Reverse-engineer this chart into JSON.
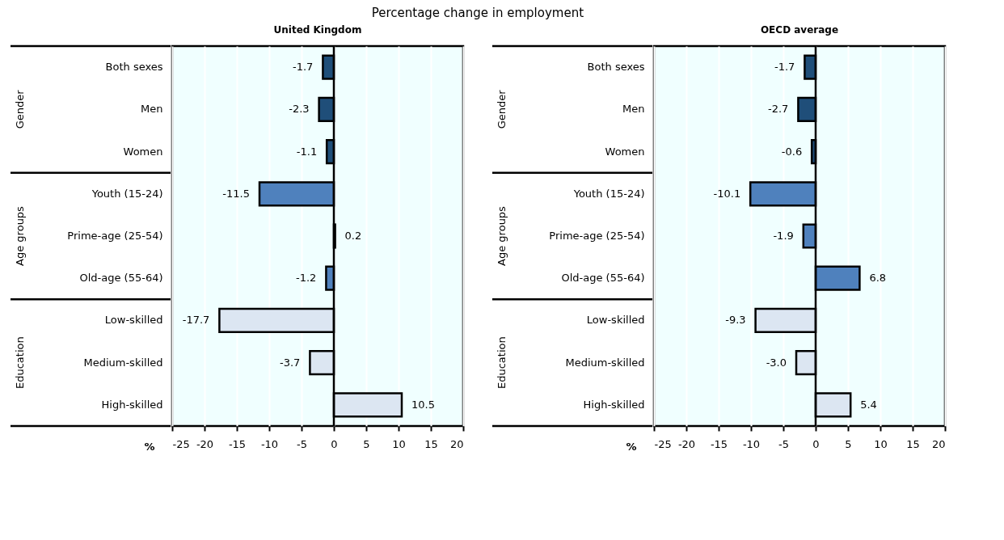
{
  "chart_data": [
    {
      "type": "bar",
      "orientation": "horizontal",
      "title": "United Kingdom",
      "subtitle": "Percentage change in employment",
      "xlabel": "%",
      "categories": [
        "Both sexes",
        "Men",
        "Women",
        "Youth (15-24)",
        "Prime-age (25-54)",
        "Old-age (55-64)",
        "Low-skilled",
        "Medium-skilled",
        "High-skilled"
      ],
      "values": [
        -1.7,
        -2.3,
        -1.1,
        -11.5,
        0.2,
        -1.2,
        -17.7,
        -3.7,
        10.5
      ],
      "colors": [
        "#1f4e79",
        "#1f4e79",
        "#1f4e79",
        "#4f81bd",
        "#4f81bd",
        "#4f81bd",
        "#dce6f2",
        "#dce6f2",
        "#dce6f2"
      ],
      "annotations": [
        "Gender",
        "Age groups",
        "Education"
      ],
      "value_labels": [
        "-1.7",
        "-2.3",
        "-1.1",
        "-11.5",
        "0.2",
        "-1.2",
        "-17.7",
        "-3.7",
        "10.5"
      ],
      "xlim": [
        -25,
        20
      ],
      "xticks": [
        -25,
        -20,
        -15,
        -10,
        -5,
        0,
        5,
        10,
        15,
        20
      ],
      "grid": "x",
      "legend": false
    },
    {
      "type": "bar",
      "orientation": "horizontal",
      "title": "OECD average",
      "xlabel": "%",
      "categories": [
        "Both sexes",
        "Men",
        "Women",
        "Youth (15-24)",
        "Prime-age (25-54)",
        "Old-age (55-64)",
        "Low-skilled",
        "Medium-skilled",
        "High-skilled"
      ],
      "values": [
        -1.7,
        -2.7,
        -0.6,
        -10.1,
        -1.9,
        6.8,
        -9.3,
        -3.0,
        5.4
      ],
      "colors": [
        "#1f4e79",
        "#1f4e79",
        "#1f4e79",
        "#4f81bd",
        "#4f81bd",
        "#4f81bd",
        "#dce6f2",
        "#dce6f2",
        "#dce6f2"
      ],
      "annotations": [
        "Gender",
        "Age groups",
        "Education"
      ],
      "value_labels": [
        "-1.7",
        "-2.7",
        "-0.6",
        "-10.1",
        "-1.9",
        "6.8",
        "-9.3",
        "-3.0",
        "5.4"
      ],
      "xlim": [
        -25,
        20
      ],
      "xticks": [
        -25,
        -20,
        -15,
        -10,
        -5,
        0,
        5,
        10,
        15,
        20
      ],
      "grid": "x",
      "legend": false
    }
  ]
}
